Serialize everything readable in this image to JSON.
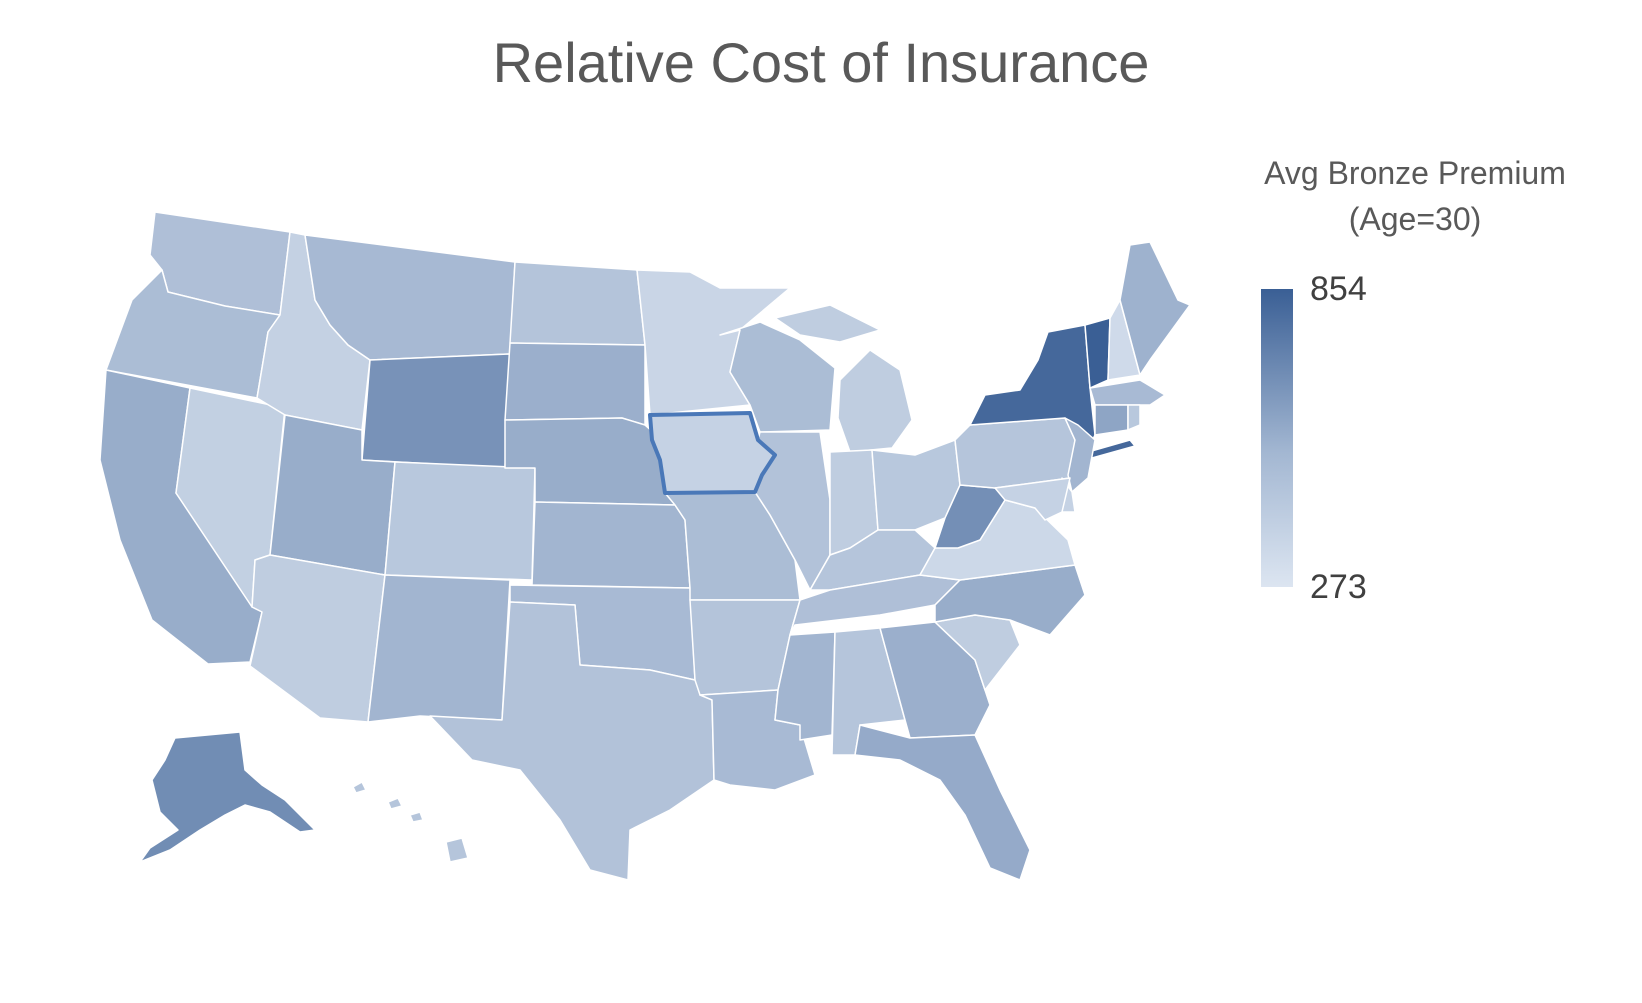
{
  "title": "Relative Cost of Insurance",
  "legend": {
    "title_line1": "Avg Bronze Premium",
    "title_line2": "(Age=30)",
    "max_label": "854",
    "min_label": "273",
    "max_value": 854,
    "min_value": 273,
    "color_high": "#3a5f95",
    "color_low": "#dce5f1"
  },
  "map": {
    "type": "choropleth",
    "region": "United States",
    "highlighted_state": "IA",
    "highlight_color": "#4a78b8",
    "states": [
      {
        "id": "WA",
        "rel": 0.28
      },
      {
        "id": "OR",
        "rel": 0.3
      },
      {
        "id": "CA",
        "rel": 0.42
      },
      {
        "id": "NV",
        "rel": 0.16
      },
      {
        "id": "ID",
        "rel": 0.15
      },
      {
        "id": "MT",
        "rel": 0.33
      },
      {
        "id": "WY",
        "rel": 0.62
      },
      {
        "id": "UT",
        "rel": 0.42
      },
      {
        "id": "AZ",
        "rel": 0.18
      },
      {
        "id": "CO",
        "rel": 0.22
      },
      {
        "id": "NM",
        "rel": 0.36
      },
      {
        "id": "ND",
        "rel": 0.25
      },
      {
        "id": "SD",
        "rel": 0.4
      },
      {
        "id": "NE",
        "rel": 0.42
      },
      {
        "id": "KS",
        "rel": 0.36
      },
      {
        "id": "OK",
        "rel": 0.32
      },
      {
        "id": "TX",
        "rel": 0.26
      },
      {
        "id": "MN",
        "rel": 0.12
      },
      {
        "id": "IA",
        "rel": 0.14
      },
      {
        "id": "MO",
        "rel": 0.3
      },
      {
        "id": "AR",
        "rel": 0.25
      },
      {
        "id": "LA",
        "rel": 0.32
      },
      {
        "id": "WI",
        "rel": 0.3
      },
      {
        "id": "IL",
        "rel": 0.26
      },
      {
        "id": "MI",
        "rel": 0.18
      },
      {
        "id": "IN",
        "rel": 0.18
      },
      {
        "id": "OH",
        "rel": 0.22
      },
      {
        "id": "KY",
        "rel": 0.24
      },
      {
        "id": "TN",
        "rel": 0.28
      },
      {
        "id": "MS",
        "rel": 0.36
      },
      {
        "id": "AL",
        "rel": 0.24
      },
      {
        "id": "GA",
        "rel": 0.4
      },
      {
        "id": "FL",
        "rel": 0.44
      },
      {
        "id": "SC",
        "rel": 0.18
      },
      {
        "id": "NC",
        "rel": 0.42
      },
      {
        "id": "VA",
        "rel": 0.1
      },
      {
        "id": "WV",
        "rel": 0.64
      },
      {
        "id": "PA",
        "rel": 0.24
      },
      {
        "id": "NY",
        "rel": 0.93
      },
      {
        "id": "VT",
        "rel": 1.0
      },
      {
        "id": "NH",
        "rel": 0.08
      },
      {
        "id": "ME",
        "rel": 0.38
      },
      {
        "id": "MA",
        "rel": 0.32
      },
      {
        "id": "CT",
        "rel": 0.48
      },
      {
        "id": "RI",
        "rel": 0.22
      },
      {
        "id": "NJ",
        "rel": 0.36
      },
      {
        "id": "DE",
        "rel": 0.14
      },
      {
        "id": "MD",
        "rel": 0.14
      },
      {
        "id": "AK",
        "rel": 0.66
      },
      {
        "id": "HI",
        "rel": 0.24
      }
    ]
  }
}
